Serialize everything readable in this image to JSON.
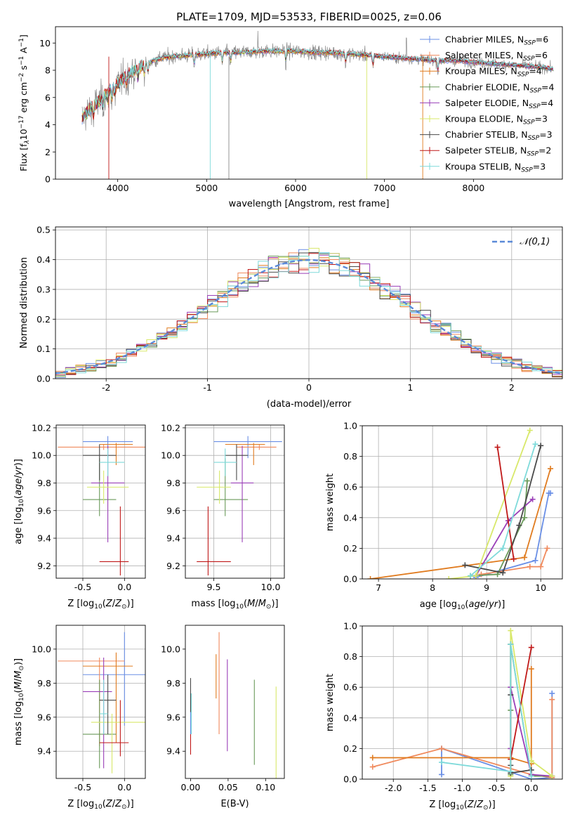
{
  "figure": {
    "title": "PLATE=1709, MJD=53533, FIBERID=0025, z=0.06"
  },
  "colors": [
    "#6a8fe6",
    "#f08a5d",
    "#e07b1f",
    "#6a9a5a",
    "#9a3fb8",
    "#d8e86a",
    "#4a4a4a",
    "#c01818",
    "#7edada"
  ],
  "chart_data": [
    {
      "id": "spectrum",
      "type": "line",
      "xlabel": "wavelength [Angstrom, rest frame]",
      "ylabel": "Flux [f_λ10^-17 erg cm^-2 s^-1 A^-1]",
      "xlim": [
        3300,
        9000
      ],
      "ylim": [
        0,
        11.2
      ],
      "xticks": [
        4000,
        5000,
        6000,
        7000,
        8000
      ],
      "yticks": [
        0,
        2,
        4,
        6,
        8,
        10
      ],
      "grid": false,
      "legend_position": "top-right",
      "legend": [
        {
          "model": "Chabrier MILES",
          "n": "6"
        },
        {
          "model": "Salpeter MILES",
          "n": "6"
        },
        {
          "model": "Kroupa MILES",
          "n": "4"
        },
        {
          "model": "Chabrier ELODIE",
          "n": "4"
        },
        {
          "model": "Salpeter ELODIE",
          "n": "4"
        },
        {
          "model": "Kroupa ELODIE",
          "n": "3"
        },
        {
          "model": "Chabrier STELIB",
          "n": "3"
        },
        {
          "model": "Salpeter STELIB",
          "n": "2"
        },
        {
          "model": "Kroupa STELIB",
          "n": "3"
        }
      ],
      "model_continuum": {
        "x": [
          3600,
          3700,
          3800,
          3900,
          4000,
          4100,
          4200,
          4300,
          4400,
          4500,
          4600,
          4800,
          5000,
          5200,
          5400,
          5600,
          5800,
          6000,
          6200,
          6400,
          6600,
          6800,
          7000,
          7200,
          7400,
          7600,
          7800,
          8000,
          8200,
          8400,
          8600,
          8800,
          8900
        ],
        "y": [
          4.5,
          5.2,
          5.8,
          6.5,
          7.0,
          7.6,
          8.0,
          8.4,
          8.7,
          8.9,
          9.0,
          9.1,
          9.2,
          9.3,
          9.3,
          9.4,
          9.4,
          9.4,
          9.3,
          9.3,
          9.2,
          9.1,
          9.0,
          8.9,
          8.8,
          8.7,
          8.7,
          8.6,
          8.5,
          8.4,
          8.3,
          8.2,
          8.1
        ]
      }
    },
    {
      "id": "residuals",
      "type": "histogram",
      "xlabel": "(data-model)/error",
      "ylabel": "Normed distribution",
      "xlim": [
        -2.5,
        2.5
      ],
      "ylim": [
        0,
        0.51
      ],
      "xticks": [
        -2,
        -1,
        0,
        1,
        2
      ],
      "yticks": [
        0.0,
        0.1,
        0.2,
        0.3,
        0.4,
        0.5
      ],
      "grid": true,
      "legend_position": "top-right",
      "legend": [
        "𝒩(0,1)"
      ],
      "bin_width": 0.1
    },
    {
      "id": "age_vs_Z",
      "type": "errorbar",
      "xlabel": "Z [log10(Z/Z⊙)]",
      "ylabel": "age [log10(age/yr)]",
      "xlim": [
        -0.82,
        0.25
      ],
      "ylim": [
        9.11,
        10.22
      ],
      "xticks": [
        -0.5,
        0.0
      ],
      "yticks": [
        9.2,
        9.4,
        9.6,
        9.8,
        10.0,
        10.2
      ],
      "grid": true,
      "points": [
        {
          "x": -0.2,
          "xerr": [
            0.3,
            0.3
          ],
          "y": 10.1,
          "yerr": [
            0.12,
            0.04
          ]
        },
        {
          "x": -0.25,
          "xerr": [
            0.55,
            0.5
          ],
          "y": 10.06,
          "yerr": [
            0.02,
            0.02
          ]
        },
        {
          "x": -0.1,
          "xerr": [
            0.2,
            0.2
          ],
          "y": 10.08,
          "yerr": [
            0.15,
            0.01
          ]
        },
        {
          "x": -0.3,
          "xerr": [
            0.2,
            0.2
          ],
          "y": 9.68,
          "yerr": [
            0.12,
            0.3
          ]
        },
        {
          "x": -0.2,
          "xerr": [
            0.2,
            0.2
          ],
          "y": 9.8,
          "yerr": [
            0.43,
            0.27
          ]
        },
        {
          "x": -0.25,
          "xerr": [
            0.2,
            0.3
          ],
          "y": 9.77,
          "yerr": [
            0.12,
            0.12
          ]
        },
        {
          "x": -0.3,
          "xerr": [
            0.2,
            0.2
          ],
          "y": 10.0,
          "yerr": [
            0.18,
            0.08
          ]
        },
        {
          "x": -0.05,
          "xerr": [
            0.25,
            0.1
          ],
          "y": 9.23,
          "yerr": [
            0.1,
            0.4
          ]
        },
        {
          "x": -0.2,
          "xerr": [
            0.1,
            0.2
          ],
          "y": 9.95,
          "yerr": [
            0.1,
            0.1
          ]
        }
      ]
    },
    {
      "id": "age_vs_mass",
      "type": "errorbar",
      "xlabel": "mass [log10(M/M⊙)]",
      "ylabel": "",
      "xlim": [
        9.25,
        10.12
      ],
      "ylim": [
        9.11,
        10.22
      ],
      "xticks": [
        9.5,
        10.0
      ],
      "yticks": [
        9.2,
        9.4,
        9.6,
        9.8,
        10.0,
        10.2
      ],
      "grid": true,
      "points": [
        {
          "x": 9.8,
          "xerr": [
            0.3,
            0.3
          ],
          "y": 10.1,
          "yerr": [
            0.12,
            0.04
          ]
        },
        {
          "x": 9.9,
          "xerr": [
            0.2,
            0.15
          ],
          "y": 10.06,
          "yerr": [
            0.02,
            0.02
          ]
        },
        {
          "x": 9.85,
          "xerr": [
            0.25,
            0.1
          ],
          "y": 10.08,
          "yerr": [
            0.15,
            0.01
          ]
        },
        {
          "x": 9.6,
          "xerr": [
            0.1,
            0.2
          ],
          "y": 9.68,
          "yerr": [
            0.12,
            0.3
          ]
        },
        {
          "x": 9.75,
          "xerr": [
            0.1,
            0.1
          ],
          "y": 9.8,
          "yerr": [
            0.43,
            0.27
          ]
        },
        {
          "x": 9.55,
          "xerr": [
            0.2,
            0.1
          ],
          "y": 9.77,
          "yerr": [
            0.12,
            0.12
          ]
        },
        {
          "x": 9.7,
          "xerr": [
            0.1,
            0.1
          ],
          "y": 10.0,
          "yerr": [
            0.18,
            0.08
          ]
        },
        {
          "x": 9.45,
          "xerr": [
            0.1,
            0.2
          ],
          "y": 9.23,
          "yerr": [
            0.1,
            0.4
          ]
        },
        {
          "x": 9.6,
          "xerr": [
            0.1,
            0.1
          ],
          "y": 9.95,
          "yerr": [
            0.1,
            0.1
          ]
        }
      ]
    },
    {
      "id": "weight_vs_age",
      "type": "line",
      "xlabel": "age [log10(age/yr)]",
      "ylabel": "mass weight",
      "xlim": [
        6.7,
        10.4
      ],
      "ylim": [
        0,
        1.0
      ],
      "xticks": [
        7,
        8,
        9,
        10
      ],
      "yticks": [
        0.0,
        0.2,
        0.4,
        0.6,
        0.8,
        1.0
      ],
      "grid": true,
      "series": [
        {
          "x": [
            8.8,
            9.9,
            10.15,
            10.18
          ],
          "y": [
            0.01,
            0.12,
            0.56,
            0.56
          ]
        },
        {
          "x": [
            8.9,
            9.8,
            10.0,
            10.12
          ],
          "y": [
            0.03,
            0.08,
            0.08,
            0.2
          ]
        },
        {
          "x": [
            6.85,
            9.7,
            10.18
          ],
          "y": [
            0.0,
            0.14,
            0.72
          ]
        },
        {
          "x": [
            8.7,
            9.2,
            9.7,
            9.75
          ],
          "y": [
            0.02,
            0.03,
            0.4,
            0.64
          ]
        },
        {
          "x": [
            8.8,
            9.4,
            9.85
          ],
          "y": [
            0.02,
            0.38,
            0.52
          ]
        },
        {
          "x": [
            8.3,
            8.8,
            9.8
          ],
          "y": [
            0.0,
            0.02,
            0.97
          ]
        },
        {
          "x": [
            8.6,
            9.3,
            9.6,
            10.0
          ],
          "y": [
            0.09,
            0.04,
            0.35,
            0.87
          ]
        },
        {
          "x": [
            9.2,
            9.5
          ],
          "y": [
            0.86,
            0.13
          ]
        },
        {
          "x": [
            8.7,
            9.3,
            9.9
          ],
          "y": [
            0.02,
            0.2,
            0.88
          ]
        }
      ]
    },
    {
      "id": "mass_vs_Z",
      "type": "errorbar",
      "xlabel": "Z [log10(Z/Z⊙)]",
      "ylabel": "mass [log10(M/M⊙)]",
      "xlim": [
        -0.82,
        0.25
      ],
      "ylim": [
        9.24,
        10.14
      ],
      "xticks": [
        -0.5,
        0.0
      ],
      "yticks": [
        9.4,
        9.6,
        9.8,
        10.0
      ],
      "grid": true,
      "points": [
        {
          "x": 0.0,
          "xerr": [
            0.5,
            0.25
          ],
          "y": 9.85,
          "yerr": [
            0.3,
            0.25
          ]
        },
        {
          "x": -0.3,
          "xerr": [
            0.5,
            0.3
          ],
          "y": 9.93,
          "yerr": [
            0.5,
            0.02
          ]
        },
        {
          "x": -0.1,
          "xerr": [
            0.4,
            0.2
          ],
          "y": 9.9,
          "yerr": [
            0.45,
            0.08
          ]
        },
        {
          "x": -0.3,
          "xerr": [
            0.2,
            0.2
          ],
          "y": 9.5,
          "yerr": [
            0.2,
            0.32
          ]
        },
        {
          "x": -0.25,
          "xerr": [
            0.25,
            0.1
          ],
          "y": 9.75,
          "yerr": [
            0.45,
            0.2
          ]
        },
        {
          "x": -0.15,
          "xerr": [
            0.25,
            0.4
          ],
          "y": 9.57,
          "yerr": [
            0.3,
            0.05
          ]
        },
        {
          "x": -0.2,
          "xerr": [
            0.1,
            0.1
          ],
          "y": 9.7,
          "yerr": [
            0.2,
            0.15
          ]
        },
        {
          "x": -0.05,
          "xerr": [
            0.25,
            0.1
          ],
          "y": 9.45,
          "yerr": [
            0.08,
            0.25
          ]
        },
        {
          "x": -0.25,
          "xerr": [
            0.05,
            0.05
          ],
          "y": 9.62,
          "yerr": [
            0.12,
            0.2
          ]
        }
      ]
    },
    {
      "id": "mass_vs_ebv",
      "type": "errorbar",
      "xlabel": "E(B-V)",
      "ylabel": "",
      "xlim": [
        -0.007,
        0.125
      ],
      "ylim": [
        9.24,
        10.14
      ],
      "xticks": [
        0.0,
        0.05,
        0.1
      ],
      "yticks": [
        9.4,
        9.6,
        9.8,
        10.0
      ],
      "grid": false,
      "points": [
        {
          "x": 0.0,
          "y": 9.62,
          "yerr": [
            0.12,
            0.12
          ]
        },
        {
          "x": 0.038,
          "y": 9.88,
          "yerr": [
            0.38,
            0.22
          ]
        },
        {
          "x": 0.034,
          "y": 9.84,
          "yerr": [
            0.13,
            0.13
          ]
        },
        {
          "x": 0.085,
          "y": 9.57,
          "yerr": [
            0.25,
            0.25
          ]
        },
        {
          "x": 0.049,
          "y": 9.67,
          "yerr": [
            0.27,
            0.27
          ]
        },
        {
          "x": 0.114,
          "y": 9.5,
          "yerr": [
            0.28,
            0.28
          ]
        },
        {
          "x": 0.0,
          "y": 9.73,
          "yerr": [
            0.1,
            0.1
          ]
        },
        {
          "x": 0.0,
          "y": 9.44,
          "yerr": [
            0.06,
            0.06
          ]
        },
        {
          "x": 0.001,
          "y": 9.62,
          "yerr": [
            0.12,
            0.12
          ]
        }
      ]
    },
    {
      "id": "weight_vs_Z",
      "type": "line",
      "xlabel": "Z [log10(Z/Z⊙)]",
      "ylabel": "mass weight",
      "xlim": [
        -2.45,
        0.45
      ],
      "ylim": [
        0,
        1.0
      ],
      "xticks": [
        -2.0,
        -1.5,
        -1.0,
        -0.5,
        0.0
      ],
      "yticks": [
        0.0,
        0.2,
        0.4,
        0.6,
        0.8,
        1.0
      ],
      "grid": true,
      "series": [
        {
          "x": [
            -1.3,
            -1.3,
            0.0,
            0.3,
            0.3
          ],
          "y": [
            0.03,
            0.2,
            0.0,
            0.01,
            0.56
          ]
        },
        {
          "x": [
            -2.3,
            -1.3,
            0.0,
            0.3,
            0.3
          ],
          "y": [
            0.08,
            0.2,
            0.03,
            0.01,
            0.52
          ]
        },
        {
          "x": [
            -2.3,
            -0.3,
            0.0,
            0.0
          ],
          "y": [
            0.14,
            0.14,
            0.1,
            0.72
          ]
        },
        {
          "x": [
            -0.3,
            -0.3,
            -0.3,
            0.0,
            0.3
          ],
          "y": [
            0.03,
            0.45,
            0.88,
            0.02,
            0.02
          ]
        },
        {
          "x": [
            -0.3,
            -0.3,
            0.0,
            0.3
          ],
          "y": [
            0.2,
            0.6,
            0.03,
            0.02
          ]
        },
        {
          "x": [
            -0.3,
            -0.3,
            0.0,
            0.3
          ],
          "y": [
            0.02,
            0.97,
            0.12,
            0.02
          ]
        },
        {
          "x": [
            -0.3,
            -0.3,
            -0.3,
            -0.3,
            0.0
          ],
          "y": [
            0.09,
            0.55,
            0.88,
            0.04,
            0.06
          ]
        },
        {
          "x": [
            -0.3,
            0.0
          ],
          "y": [
            0.13,
            0.86
          ]
        },
        {
          "x": [
            -1.3,
            -0.3,
            -0.3,
            0.0
          ],
          "y": [
            0.11,
            0.05,
            0.88,
            0.02
          ]
        }
      ]
    }
  ]
}
